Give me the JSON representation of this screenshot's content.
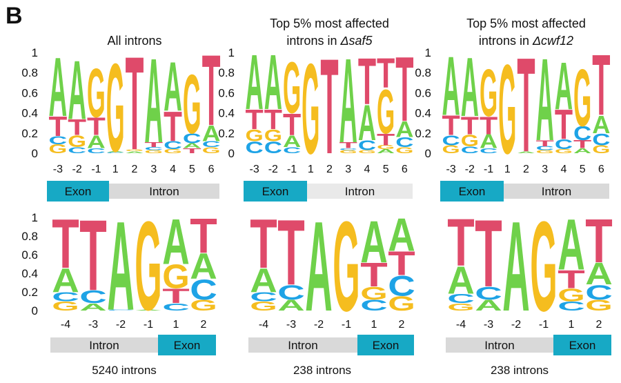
{
  "panel_label": "B",
  "colors": {
    "A": "#6fd14a",
    "C": "#1ea3e6",
    "G": "#f5bd1f",
    "T": "#df4a6a",
    "exon": "#17a9c5",
    "intron": "#d9d9d9",
    "intron_light": "#e9e9e9"
  },
  "chart_data": [
    {
      "type": "sequence_logo",
      "title_lines": [
        "All introns"
      ],
      "positions": [
        "-3",
        "-2",
        "-1",
        "1",
        "2",
        "3",
        "4",
        "5",
        "6"
      ],
      "yticks": [
        "0",
        "0.2",
        "0.4",
        "0.6",
        "0.8",
        "1"
      ],
      "segments": [
        {
          "label": "Exon",
          "kind": "exon"
        },
        {
          "label": "Intron",
          "kind": "intron"
        }
      ],
      "stacks": [
        [
          [
            "G",
            0.09
          ],
          [
            "C",
            0.08
          ],
          [
            "T",
            0.2
          ],
          [
            "A",
            0.6
          ]
        ],
        [
          [
            "C",
            0.06
          ],
          [
            "G",
            0.12
          ],
          [
            "T",
            0.16
          ],
          [
            "A",
            0.6
          ]
        ],
        [
          [
            "C",
            0.05
          ],
          [
            "A",
            0.13
          ],
          [
            "T",
            0.18
          ],
          [
            "G",
            0.5
          ]
        ],
        [
          [
            "C",
            0.01
          ],
          [
            "A",
            0.01
          ],
          [
            "G",
            0.9
          ]
        ],
        [
          [
            "A",
            0.02
          ],
          [
            "G",
            0.02
          ],
          [
            "T",
            0.95
          ]
        ],
        [
          [
            "G",
            0.03
          ],
          [
            "C",
            0.03
          ],
          [
            "T",
            0.05
          ],
          [
            "A",
            0.86
          ]
        ],
        [
          [
            "G",
            0.04
          ],
          [
            "C",
            0.08
          ],
          [
            "T",
            0.3
          ],
          [
            "A",
            0.5
          ]
        ],
        [
          [
            "T",
            0.05
          ],
          [
            "A",
            0.05
          ],
          [
            "C",
            0.1
          ],
          [
            "G",
            0.6
          ]
        ],
        [
          [
            "G",
            0.06
          ],
          [
            "C",
            0.06
          ],
          [
            "A",
            0.16
          ],
          [
            "T",
            0.72
          ]
        ]
      ]
    },
    {
      "type": "sequence_logo",
      "title_lines": [
        "Top 5% most affected",
        "introns in",
        "Δsaf5"
      ],
      "positions": [
        "-3",
        "-2",
        "-1",
        "1",
        "2",
        "3",
        "4",
        "5",
        "6"
      ],
      "yticks": [
        "0",
        "0.2",
        "0.4",
        "0.6",
        "0.8",
        "1"
      ],
      "segments": [
        {
          "label": "Exon",
          "kind": "exon"
        },
        {
          "label": "Intron",
          "kind": "intron"
        }
      ],
      "stacks": [
        [
          [
            "C",
            0.12
          ],
          [
            "G",
            0.12
          ],
          [
            "T",
            0.2
          ],
          [
            "A",
            0.56
          ]
        ],
        [
          [
            "C",
            0.12
          ],
          [
            "G",
            0.12
          ],
          [
            "T",
            0.2
          ],
          [
            "A",
            0.56
          ]
        ],
        [
          [
            "C",
            0.06
          ],
          [
            "A",
            0.12
          ],
          [
            "T",
            0.22
          ],
          [
            "G",
            0.52
          ]
        ],
        [
          [
            "G",
            0.92
          ]
        ],
        [
          [
            "T",
            0.97
          ]
        ],
        [
          [
            "G",
            0.03
          ],
          [
            "C",
            0.02
          ],
          [
            "T",
            0.06
          ],
          [
            "A",
            0.86
          ]
        ],
        [
          [
            "G",
            0.03
          ],
          [
            "C",
            0.1
          ],
          [
            "A",
            0.36
          ],
          [
            "T",
            0.47
          ]
        ],
        [
          [
            "A",
            0.04
          ],
          [
            "G",
            0.04
          ],
          [
            "T",
            0.12
          ],
          [
            "G2",
            0.45
          ],
          [
            "T2",
            0.3
          ]
        ],
        [
          [
            "G",
            0.06
          ],
          [
            "C",
            0.1
          ],
          [
            "A",
            0.16
          ],
          [
            "T",
            0.66
          ]
        ]
      ]
    },
    {
      "type": "sequence_logo",
      "title_lines": [
        "Top 5% most affected",
        "introns in",
        "Δcwf12"
      ],
      "positions": [
        "-3",
        "-2",
        "-1",
        "1",
        "2",
        "3",
        "4",
        "5",
        "6"
      ],
      "yticks": [
        "0",
        "0.2",
        "0.4",
        "0.6",
        "0.8",
        "1"
      ],
      "segments": [
        {
          "label": "Exon",
          "kind": "exon"
        },
        {
          "label": "Intron",
          "kind": "intron"
        }
      ],
      "stacks": [
        [
          [
            "G",
            0.08
          ],
          [
            "C",
            0.1
          ],
          [
            "T",
            0.2
          ],
          [
            "A",
            0.6
          ]
        ],
        [
          [
            "C",
            0.07
          ],
          [
            "G",
            0.12
          ],
          [
            "T",
            0.18
          ],
          [
            "A",
            0.6
          ]
        ],
        [
          [
            "C",
            0.05
          ],
          [
            "A",
            0.14
          ],
          [
            "T",
            0.18
          ],
          [
            "G",
            0.48
          ]
        ],
        [
          [
            "G",
            0.91
          ]
        ],
        [
          [
            "A",
            0.02
          ],
          [
            "T",
            0.96
          ]
        ],
        [
          [
            "G",
            0.03
          ],
          [
            "C",
            0.04
          ],
          [
            "T",
            0.06
          ],
          [
            "A",
            0.84
          ]
        ],
        [
          [
            "G",
            0.04
          ],
          [
            "C",
            0.1
          ],
          [
            "T",
            0.3
          ],
          [
            "A",
            0.48
          ]
        ],
        [
          [
            "A",
            0.05
          ],
          [
            "T",
            0.08
          ],
          [
            "C",
            0.14
          ],
          [
            "G",
            0.58
          ]
        ],
        [
          [
            "G",
            0.08
          ],
          [
            "C",
            0.12
          ],
          [
            "A",
            0.18
          ],
          [
            "T",
            0.62
          ]
        ]
      ]
    },
    {
      "type": "sequence_logo",
      "title_lines": [],
      "count_label": "5240 introns",
      "positions": [
        "-4",
        "-3",
        "-2",
        "-1",
        "1",
        "2"
      ],
      "yticks": [
        "0",
        "0.2",
        "0.4",
        "0.6",
        "0.8",
        "1"
      ],
      "segments": [
        {
          "label": "Intron",
          "kind": "intron"
        },
        {
          "label": "Exon",
          "kind": "exon"
        }
      ],
      "stacks": [
        [
          [
            "G",
            0.1
          ],
          [
            "C",
            0.1
          ],
          [
            "A",
            0.26
          ],
          [
            "T",
            0.54
          ]
        ],
        [
          [
            "A",
            0.08
          ],
          [
            "C",
            0.14
          ],
          [
            "T",
            0.78
          ]
        ],
        [
          [
            "C",
            0.01
          ],
          [
            "A",
            0.98
          ]
        ],
        [
          [
            "A",
            0.01
          ],
          [
            "G",
            0.98
          ]
        ],
        [
          [
            "C",
            0.08
          ],
          [
            "T",
            0.16
          ],
          [
            "G",
            0.26
          ],
          [
            "A",
            0.5
          ]
        ],
        [
          [
            "G",
            0.12
          ],
          [
            "C",
            0.22
          ],
          [
            "A",
            0.28
          ],
          [
            "T",
            0.38
          ]
        ]
      ]
    },
    {
      "type": "sequence_logo",
      "title_lines": [],
      "count_label": "238 introns",
      "positions": [
        "-4",
        "-3",
        "-2",
        "-1",
        "1",
        "2"
      ],
      "yticks": [
        "0",
        "0.2",
        "0.4",
        "0.6",
        "0.8",
        "1"
      ],
      "segments": [
        {
          "label": "Intron",
          "kind": "intron"
        },
        {
          "label": "Exon",
          "kind": "exon"
        }
      ],
      "stacks": [
        [
          [
            "G",
            0.1
          ],
          [
            "C",
            0.1
          ],
          [
            "A",
            0.26
          ],
          [
            "T",
            0.54
          ]
        ],
        [
          [
            "A",
            0.12
          ],
          [
            "C",
            0.16
          ],
          [
            "T",
            0.72
          ]
        ],
        [
          [
            "A",
            0.99
          ]
        ],
        [
          [
            "G",
            0.99
          ]
        ],
        [
          [
            "C",
            0.12
          ],
          [
            "G",
            0.14
          ],
          [
            "T",
            0.26
          ],
          [
            "A",
            0.46
          ]
        ],
        [
          [
            "G",
            0.16
          ],
          [
            "C",
            0.22
          ],
          [
            "T",
            0.26
          ],
          [
            "A",
            0.36
          ]
        ]
      ]
    },
    {
      "type": "sequence_logo",
      "title_lines": [],
      "count_label": "238 introns",
      "positions": [
        "-4",
        "-3",
        "-2",
        "-1",
        "1",
        "2"
      ],
      "yticks": [
        "0",
        "0.2",
        "0.4",
        "0.6",
        "0.8",
        "1"
      ],
      "segments": [
        {
          "label": "Intron",
          "kind": "intron"
        },
        {
          "label": "Exon",
          "kind": "exon"
        }
      ],
      "stacks": [
        [
          [
            "G",
            0.08
          ],
          [
            "C",
            0.1
          ],
          [
            "A",
            0.3
          ],
          [
            "T",
            0.52
          ]
        ],
        [
          [
            "A",
            0.12
          ],
          [
            "C",
            0.14
          ],
          [
            "T",
            0.74
          ]
        ],
        [
          [
            "A",
            0.99
          ]
        ],
        [
          [
            "G",
            0.99
          ]
        ],
        [
          [
            "C",
            0.1
          ],
          [
            "G",
            0.14
          ],
          [
            "T",
            0.2
          ],
          [
            "A",
            0.56
          ]
        ],
        [
          [
            "G",
            0.12
          ],
          [
            "C",
            0.16
          ],
          [
            "A",
            0.24
          ],
          [
            "T",
            0.48
          ]
        ]
      ]
    }
  ]
}
